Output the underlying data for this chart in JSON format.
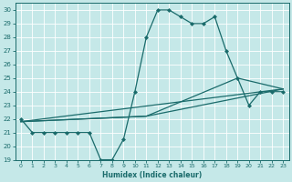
{
  "xlabel": "Humidex (Indice chaleur)",
  "ylabel": "",
  "bg_color": "#c5e8e8",
  "line_color": "#1a6b6b",
  "xlim": [
    -0.5,
    23.5
  ],
  "ylim": [
    19,
    30.5
  ],
  "yticks": [
    19,
    20,
    21,
    22,
    23,
    24,
    25,
    26,
    27,
    28,
    29,
    30
  ],
  "xticks": [
    0,
    1,
    2,
    3,
    4,
    5,
    6,
    7,
    8,
    9,
    10,
    11,
    12,
    13,
    14,
    15,
    16,
    17,
    18,
    19,
    20,
    21,
    22,
    23
  ],
  "series": [
    {
      "x": [
        0,
        1,
        2,
        3,
        4,
        5,
        6,
        7,
        8,
        9,
        10,
        11,
        12,
        13,
        14,
        15,
        16,
        17,
        18,
        19,
        20,
        21,
        22,
        23
      ],
      "y": [
        22,
        21,
        21,
        21,
        21,
        21,
        21,
        19,
        19,
        20.5,
        24,
        28,
        30,
        30,
        29.5,
        29,
        29,
        29.5,
        27,
        25,
        23,
        24,
        24,
        24
      ],
      "marker": true
    },
    {
      "x": [
        0,
        23
      ],
      "y": [
        21.8,
        24.2
      ],
      "marker": false
    },
    {
      "x": [
        0,
        11,
        23
      ],
      "y": [
        21.8,
        22.2,
        24.2
      ],
      "marker": false
    },
    {
      "x": [
        0,
        11,
        19,
        23
      ],
      "y": [
        21.8,
        22.2,
        25.0,
        24.2
      ],
      "marker": false
    }
  ]
}
